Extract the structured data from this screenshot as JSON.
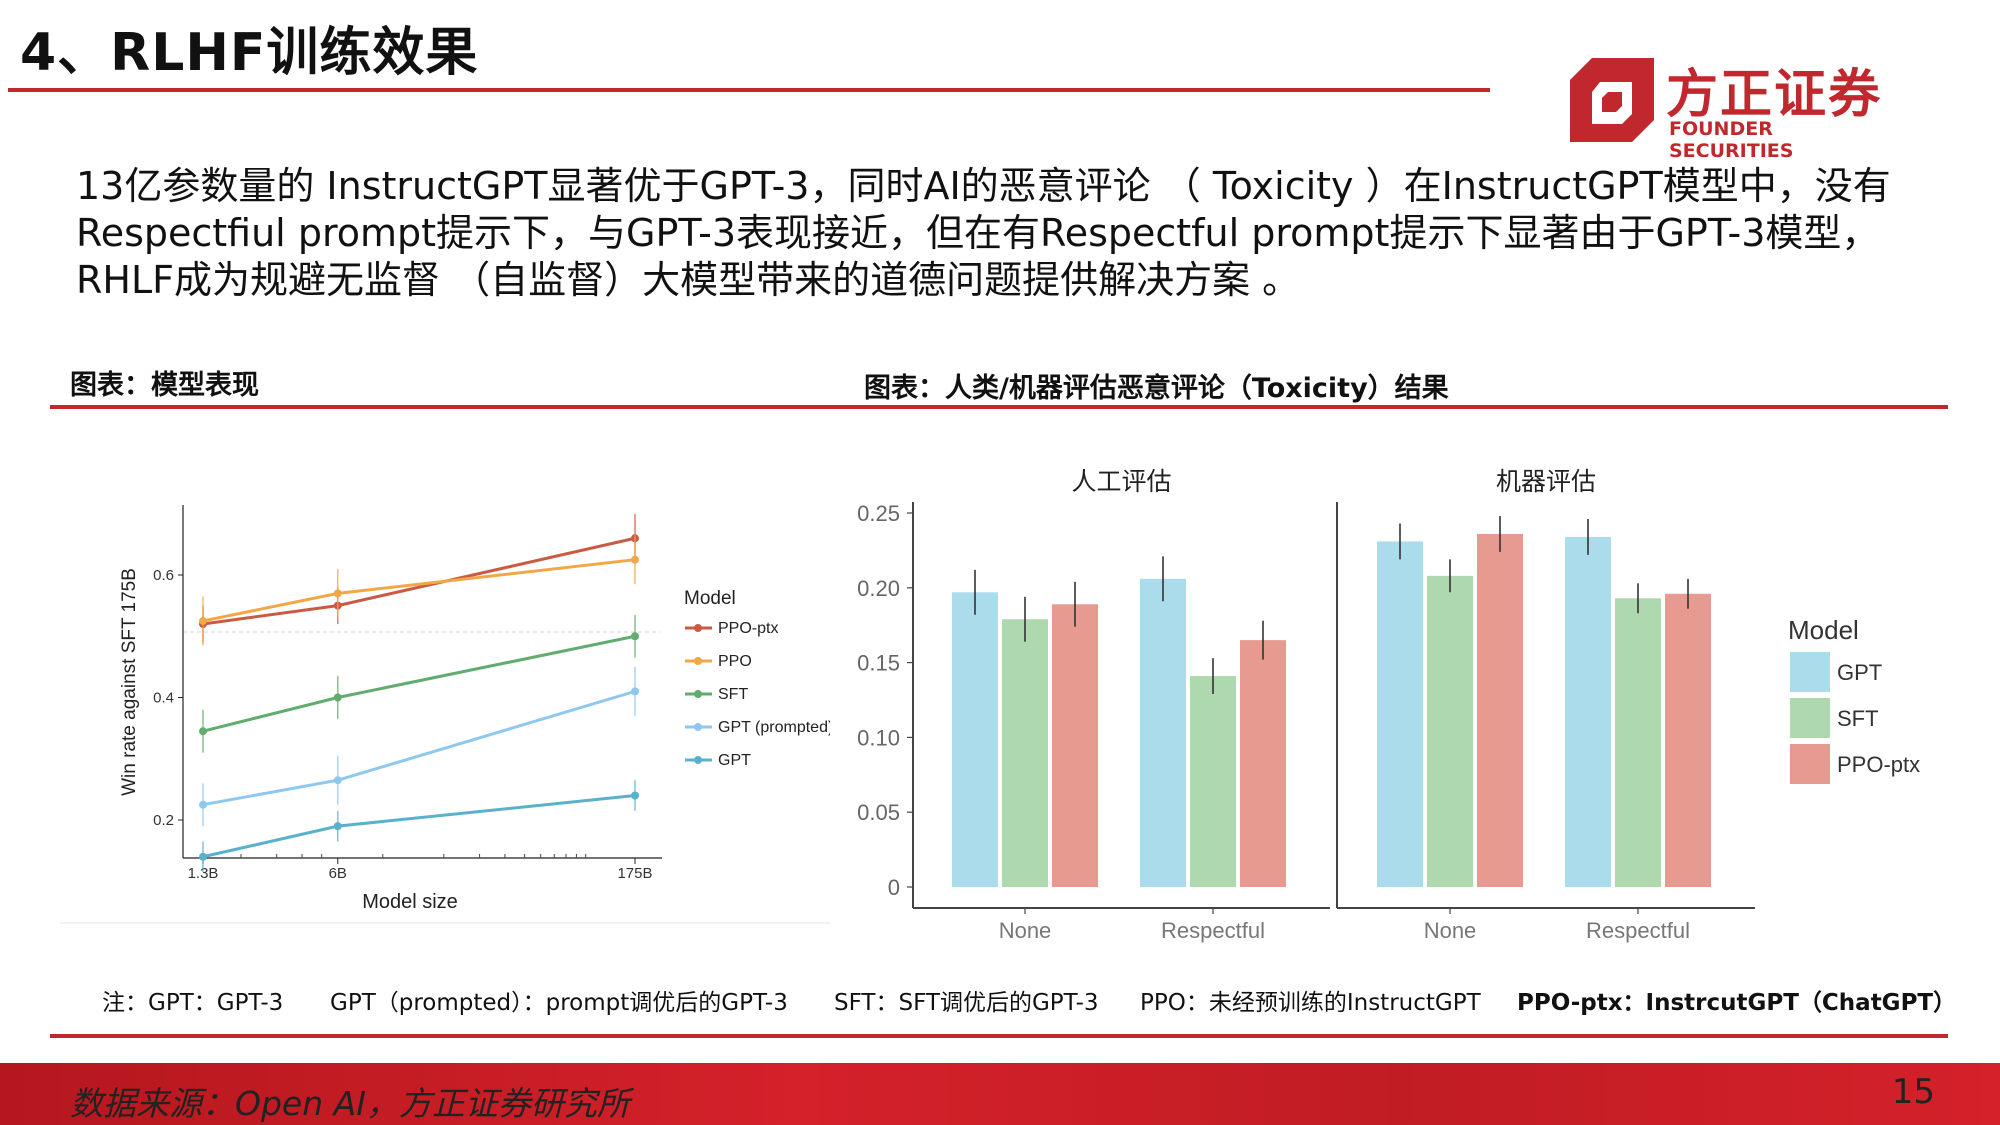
{
  "slide_title": "4、RLHF训练效果",
  "logo": {
    "cn": "方正证券",
    "en": "FOUNDER SECURITIES"
  },
  "intro": [
    "13亿参数量的 InstructGPT显著优于GPT-3，同时AI的恶意评论 （ Toxicity ）在InstructGPT模型中，没有",
    "Respectfiul prompt提示下，与GPT-3表现接近，但在有Respectful prompt提示下显著由于GPT-3模型，",
    "RHLF成为规避无监督 （自监督）大模型带来的道德问题提供解决方案 。"
  ],
  "captions": {
    "left": "图表：模型表现",
    "right": "图表：人类/机器评估恶意评论（Toxicity）结果"
  },
  "footnotes": [
    "注：GPT：GPT-3",
    "GPT（prompted）：prompt调优后的GPT-3",
    "SFT：SFT调优后的GPT-3",
    "PPO：未经预训练的InstructGPT",
    "PPO-ptx：InstrcutGPT（ChatGPT）"
  ],
  "footer": {
    "source": "数据来源：Open AI，方正证券研究所",
    "page": "15"
  },
  "chart_data": [
    {
      "type": "line",
      "xlabel": "Model size",
      "ylabel": "Win rate against SFT 175B",
      "x": [
        "1.3B",
        "6B",
        "175B"
      ],
      "x_scale": "log",
      "y_ticks": [
        "0.2",
        "0.4",
        "0.6"
      ],
      "ylim": [
        0.14,
        0.65
      ],
      "reference_line": 0.5,
      "legend_title": "Model",
      "legend_position": "right",
      "series": [
        {
          "name": "PPO-ptx",
          "color": "#c95b45",
          "values": [
            0.52,
            0.55,
            0.66
          ],
          "errors": [
            0.03,
            0.03,
            0.04
          ]
        },
        {
          "name": "PPO",
          "color": "#f2a746",
          "values": [
            0.525,
            0.57,
            0.625
          ],
          "errors": [
            0.04,
            0.04,
            0.04
          ]
        },
        {
          "name": "SFT",
          "color": "#62ac6f",
          "values": [
            0.345,
            0.4,
            0.5
          ],
          "errors": [
            0.035,
            0.035,
            0.035
          ]
        },
        {
          "name": "GPT (prompted)",
          "color": "#8fc8ef",
          "values": [
            0.225,
            0.265,
            0.41
          ],
          "errors": [
            0.035,
            0.04,
            0.04
          ]
        },
        {
          "name": "GPT",
          "color": "#5ab1cb",
          "values": [
            0.14,
            0.19,
            0.24
          ],
          "errors": [
            0.025,
            0.025,
            0.025
          ]
        }
      ]
    },
    {
      "type": "bar",
      "facets": [
        "人工评估",
        "机器评估"
      ],
      "categories": [
        "None",
        "Respectful"
      ],
      "ylim": [
        0,
        0.25
      ],
      "y_ticks": [
        "0",
        "0.05",
        "0.10",
        "0.15",
        "0.20",
        "0.25"
      ],
      "legend_title": "Model",
      "legend_position": "right",
      "series": [
        {
          "name": "GPT",
          "color": "#aadcec",
          "values": [
            [
              0.197,
              0.206
            ],
            [
              0.231,
              0.234
            ]
          ],
          "errors": [
            [
              0.015,
              0.015
            ],
            [
              0.012,
              0.012
            ]
          ]
        },
        {
          "name": "SFT",
          "color": "#aed9ae",
          "values": [
            [
              0.179,
              0.141
            ],
            [
              0.208,
              0.193
            ]
          ],
          "errors": [
            [
              0.015,
              0.012
            ],
            [
              0.011,
              0.01
            ]
          ]
        },
        {
          "name": "PPO-ptx",
          "color": "#e79a8f",
          "values": [
            [
              0.189,
              0.165
            ],
            [
              0.236,
              0.196
            ]
          ],
          "errors": [
            [
              0.015,
              0.013
            ],
            [
              0.012,
              0.01
            ]
          ]
        }
      ]
    }
  ]
}
